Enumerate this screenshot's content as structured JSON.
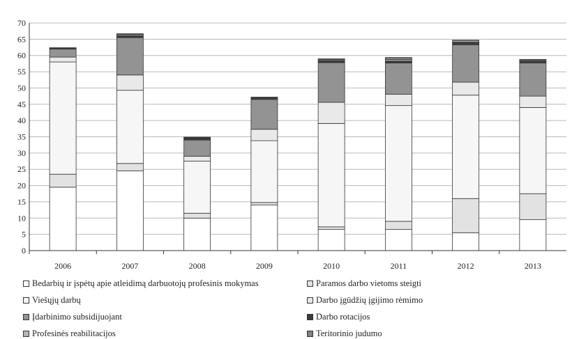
{
  "chart_data": {
    "type": "stacked-bar",
    "categories": [
      "2006",
      "2007",
      "2008",
      "2009",
      "2010",
      "2011",
      "2012",
      "2013"
    ],
    "yticks": [
      "0",
      "5",
      "10",
      "15",
      "20",
      "25",
      "30",
      "35",
      "40",
      "45",
      "50",
      "55",
      "60",
      "65",
      "70"
    ],
    "ylim": [
      0,
      70
    ],
    "grid": true,
    "legend_position": "bottom",
    "series": [
      {
        "name": "Bedarbių ir įspėtų apie atleidimą darbuotojų profesinis mokymas",
        "color": "#ffffff",
        "values": [
          19.5,
          24.5,
          10.0,
          14.0,
          6.5,
          6.5,
          5.5,
          9.5
        ]
      },
      {
        "name": "Paramos darbo vietoms steigti",
        "color": "#e2e2e2",
        "values": [
          4.0,
          2.3,
          1.5,
          0.8,
          0.8,
          2.5,
          10.5,
          8.0
        ]
      },
      {
        "name": "Viešųjų darbų",
        "color": "#f6f6f6",
        "values": [
          34.5,
          22.5,
          16.0,
          19.0,
          31.8,
          35.6,
          31.8,
          26.5
        ]
      },
      {
        "name": "Darbo įgūdžių įgijimo rėmimo",
        "color": "#e9e9e9",
        "values": [
          1.5,
          4.7,
          1.5,
          3.5,
          6.5,
          3.5,
          4.0,
          3.5
        ]
      },
      {
        "name": "Įdarbinimo subsidijuojant",
        "color": "#939393",
        "values": [
          2.5,
          11.5,
          5.0,
          9.2,
          12.2,
          9.6,
          11.5,
          10.2
        ]
      },
      {
        "name": "Darbo rotacijos",
        "color": "#3c3c3c",
        "values": [
          0.4,
          0.6,
          0.6,
          0.7,
          0.6,
          0.6,
          0.8,
          0.6
        ]
      },
      {
        "name": "Profesinės reabilitacijos",
        "color": "#b4b4b4",
        "values": [
          0.0,
          0.4,
          0.2,
          0.0,
          0.3,
          0.5,
          0.5,
          0.3
        ]
      },
      {
        "name": "Teritorinio judumo",
        "color": "#808080",
        "values": [
          0.0,
          0.2,
          0.1,
          0.0,
          0.3,
          0.6,
          0.1,
          0.2
        ]
      }
    ]
  }
}
